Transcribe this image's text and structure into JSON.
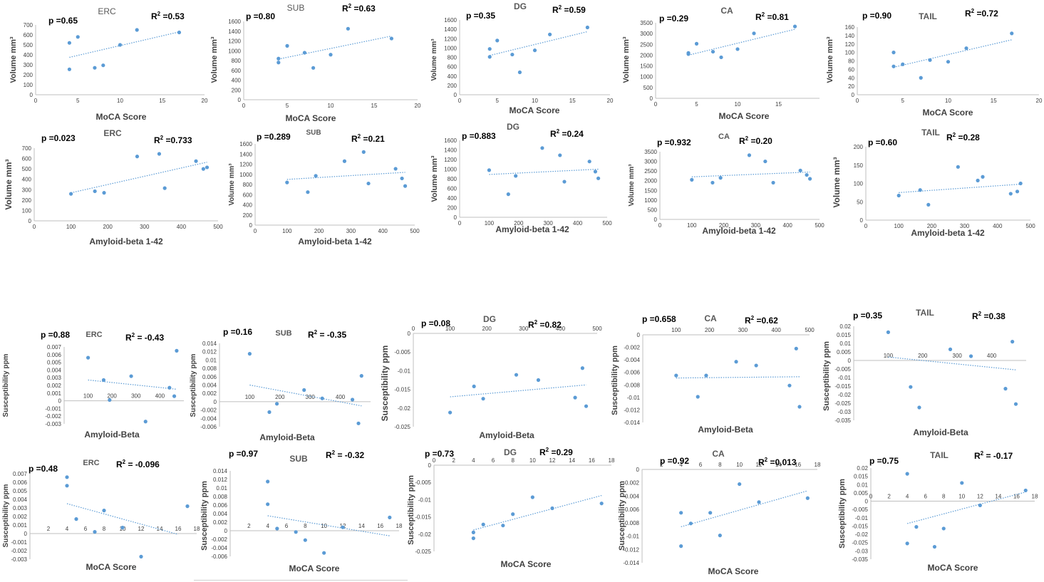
{
  "figure": {
    "style": {
      "marker_color": "#5b9bd5",
      "trend_color": "#5b9bd5",
      "axis_color": "#bfbfbf",
      "text_color": "#404040",
      "stat_color": "#000000"
    }
  },
  "chart_data": [
    {
      "id": "erc-vol-moca",
      "type": "scatter",
      "title": "ERC",
      "p": "p =0.65",
      "r2": "=0.53",
      "ylabel": "Volume mm³",
      "xlabel": "MoCA Score",
      "x": [
        4,
        4,
        5,
        7,
        8,
        10,
        12,
        17
      ],
      "y": [
        520,
        255,
        580,
        270,
        295,
        500,
        650,
        625
      ],
      "trend": [
        [
          4,
          375
        ],
        [
          17,
          630
        ]
      ],
      "xlim": [
        0,
        20
      ],
      "ylim": [
        0,
        700
      ],
      "xticks": [
        0,
        5,
        10,
        15,
        20
      ],
      "yticks": [
        0,
        100,
        200,
        300,
        400,
        500,
        600,
        700
      ]
    },
    {
      "id": "sub-vol-moca",
      "type": "scatter",
      "title": "SUB",
      "p": "p =0.80",
      "r2": "=0.63",
      "ylabel": "Volume mm³",
      "xlabel": "MoCA Score",
      "x": [
        4,
        4,
        5,
        7,
        8,
        10,
        12,
        17
      ],
      "y": [
        840,
        760,
        1100,
        960,
        650,
        920,
        1450,
        1250
      ],
      "trend": [
        [
          4,
          830
        ],
        [
          17,
          1300
        ]
      ],
      "xlim": [
        0,
        20
      ],
      "ylim": [
        0,
        1600
      ],
      "xticks": [
        0,
        5,
        10,
        15,
        20
      ],
      "yticks": [
        0,
        200,
        400,
        600,
        800,
        1000,
        1200,
        1400,
        1600
      ]
    },
    {
      "id": "dg-vol-moca",
      "type": "scatter",
      "title": "DG",
      "p": "p =0.35",
      "r2": "=0.59",
      "ylabel": "Volume mm³",
      "xlabel": "MoCA Score",
      "x": [
        4,
        4,
        5,
        7,
        8,
        10,
        12,
        17
      ],
      "y": [
        980,
        810,
        1160,
        860,
        480,
        950,
        1290,
        1440
      ],
      "trend": [
        [
          4,
          840
        ],
        [
          17,
          1350
        ]
      ],
      "xlim": [
        0,
        20
      ],
      "ylim": [
        0,
        1600
      ],
      "xticks": [
        0,
        5,
        10,
        15,
        20
      ],
      "yticks": [
        0,
        200,
        400,
        600,
        800,
        1000,
        1200,
        1400,
        1600
      ]
    },
    {
      "id": "ca-vol-moca",
      "type": "scatter",
      "title": "CA",
      "p": "p =0.29",
      "r2": "=0.81",
      "ylabel": "Volume mm³",
      "xlabel": "MoCA Score",
      "x": [
        4,
        4,
        5,
        7,
        8,
        10,
        12,
        17
      ],
      "y": [
        2100,
        2050,
        2530,
        2160,
        1900,
        2280,
        3010,
        3330
      ],
      "trend": [
        [
          4,
          2000
        ],
        [
          17,
          3200
        ]
      ],
      "xlim": [
        0,
        20
      ],
      "ylim": [
        0,
        3500
      ],
      "xticks": [
        0,
        5,
        10,
        15
      ],
      "yticks": [
        0,
        500,
        1000,
        1500,
        2000,
        2500,
        3000,
        3500
      ]
    },
    {
      "id": "tail-vol-moca",
      "type": "scatter",
      "title": "TAIL",
      "p": "p =0.90",
      "r2": "=0.72",
      "ylabel": "Volume mm³",
      "xlabel": "MoCA Score",
      "x": [
        4,
        4,
        5,
        7,
        8,
        10,
        12,
        17
      ],
      "y": [
        100,
        67,
        72,
        40,
        82,
        78,
        110,
        145
      ],
      "trend": [
        [
          4,
          65
        ],
        [
          17,
          130
        ]
      ],
      "xlim": [
        0,
        20
      ],
      "ylim": [
        0,
        160
      ],
      "xticks": [
        0,
        5,
        10,
        15,
        20
      ],
      "yticks": [
        0,
        20,
        40,
        60,
        80,
        100,
        120,
        140,
        160
      ]
    },
    {
      "id": "erc-vol-ab",
      "type": "scatter",
      "title": "ERC",
      "p": "p =0.023",
      "r2": "=0.733",
      "ylabel": "Volume mm³",
      "xlabel": "Amyloid-beta 1-42",
      "x": [
        100,
        165,
        190,
        280,
        340,
        355,
        440,
        460,
        470
      ],
      "y": [
        260,
        285,
        270,
        620,
        645,
        315,
        575,
        500,
        515
      ],
      "trend": [
        [
          100,
          270
        ],
        [
          470,
          565
        ]
      ],
      "xlim": [
        0,
        500
      ],
      "ylim": [
        0,
        700
      ],
      "xticks": [
        0,
        100,
        200,
        300,
        400,
        500
      ],
      "yticks": [
        0,
        100,
        200,
        300,
        400,
        500,
        600,
        700
      ]
    },
    {
      "id": "sub-vol-ab",
      "type": "scatter",
      "title": "SUB",
      "p": "p =0.289",
      "r2": "=0.21",
      "ylabel": "Volume mm³",
      "xlabel": "Amyloid-beta 1-42",
      "x": [
        100,
        165,
        190,
        280,
        340,
        355,
        440,
        460,
        470
      ],
      "y": [
        840,
        650,
        970,
        1260,
        1440,
        820,
        1110,
        920,
        770
      ],
      "trend": [
        [
          100,
          900
        ],
        [
          470,
          1040
        ]
      ],
      "xlim": [
        0,
        500
      ],
      "ylim": [
        0,
        1600
      ],
      "xticks": [
        0,
        100,
        200,
        300,
        400,
        500
      ],
      "yticks": [
        0,
        200,
        400,
        600,
        800,
        1000,
        1200,
        1400,
        1600
      ]
    },
    {
      "id": "dg-vol-ab",
      "type": "scatter",
      "title": "DG",
      "p": "p =0.883",
      "r2": "=0.24",
      "ylabel": "Volume mm³",
      "xlabel": "Amyloid-beta 1-42",
      "x": [
        100,
        165,
        190,
        280,
        340,
        355,
        440,
        460,
        470
      ],
      "y": [
        980,
        480,
        860,
        1440,
        1290,
        740,
        1160,
        950,
        810
      ],
      "trend": [
        [
          100,
          890
        ],
        [
          470,
          1000
        ]
      ],
      "xlim": [
        0,
        500
      ],
      "ylim": [
        0,
        1600
      ],
      "xticks": [
        0,
        100,
        200,
        300,
        400,
        500
      ],
      "yticks": [
        0,
        200,
        400,
        600,
        800,
        1000,
        1200,
        1400,
        1600
      ]
    },
    {
      "id": "ca-vol-ab",
      "type": "scatter",
      "title": "CA",
      "p": "p =0.932",
      "r2": "=0.20",
      "ylabel": "Volume mm³",
      "xlabel": "Amyloid-beta 1-42",
      "x": [
        100,
        165,
        190,
        280,
        330,
        355,
        440,
        460,
        470
      ],
      "y": [
        2050,
        1900,
        2150,
        3320,
        3000,
        1900,
        2530,
        2300,
        2100
      ],
      "trend": [
        [
          100,
          2200
        ],
        [
          470,
          2450
        ]
      ],
      "xlim": [
        0,
        500
      ],
      "ylim": [
        0,
        3500
      ],
      "xticks": [
        0,
        100,
        200,
        300,
        400,
        500
      ],
      "yticks": [
        0,
        500,
        1000,
        1500,
        2000,
        2500,
        3000,
        3500
      ]
    },
    {
      "id": "tail-vol-ab",
      "type": "scatter",
      "title": "TAIL",
      "p": "p =0.60",
      "r2": "=0.28",
      "ylabel": "Volume mm³",
      "xlabel": "Amyloid-beta 1-42",
      "x": [
        100,
        165,
        190,
        280,
        340,
        355,
        440,
        460,
        470
      ],
      "y": [
        67,
        82,
        42,
        145,
        108,
        118,
        72,
        78,
        100
      ],
      "trend": [
        [
          100,
          75
        ],
        [
          470,
          98
        ]
      ],
      "xlim": [
        0,
        500
      ],
      "ylim": [
        0,
        200
      ],
      "xticks": [
        0,
        100,
        200,
        300,
        400,
        500
      ],
      "yticks": [
        0,
        50,
        100,
        150,
        200
      ]
    },
    {
      "id": "erc-sus-ab",
      "type": "scatter",
      "title": "ERC",
      "p": "p =0.88",
      "r2": "= -0.43",
      "ylabel": "Susceptibility ppm",
      "xlabel": "Amyloid-Beta",
      "x": [
        100,
        165,
        190,
        280,
        340,
        440,
        460,
        470
      ],
      "y": [
        0.0056,
        0.0027,
        0.0001,
        0.0032,
        -0.0027,
        0.0017,
        0.0006,
        0.0065
      ],
      "trend": [
        [
          100,
          0.0027
        ],
        [
          470,
          0.0015
        ]
      ],
      "xlim": [
        0,
        500
      ],
      "ylim": [
        -0.003,
        0.007
      ],
      "xticks": [
        100,
        200,
        300,
        400
      ],
      "yticks": [
        -0.003,
        -0.002,
        -0.001,
        0,
        0.001,
        0.002,
        0.003,
        0.004,
        0.005,
        0.006,
        0.007
      ]
    },
    {
      "id": "sub-sus-ab",
      "type": "scatter",
      "title": "SUB",
      "p": "p =0.16",
      "r2": "= -0.35",
      "ylabel": "Susceptibility ppm",
      "xlabel": "Amyloid-Beta",
      "x": [
        100,
        165,
        190,
        280,
        340,
        440,
        460,
        470
      ],
      "y": [
        0.0115,
        -0.0025,
        -0.0005,
        0.0028,
        0.0008,
        0.0005,
        -0.0052,
        0.0062
      ],
      "trend": [
        [
          100,
          0.004
        ],
        [
          470,
          -0.001
        ]
      ],
      "xlim": [
        0,
        500
      ],
      "ylim": [
        -0.006,
        0.014
      ],
      "xticks": [
        100,
        200,
        300,
        400
      ],
      "yticks": [
        -0.006,
        -0.004,
        -0.002,
        0,
        0.002,
        0.004,
        0.006,
        0.008,
        0.01,
        0.012,
        0.014
      ]
    },
    {
      "id": "dg-sus-ab",
      "type": "scatter",
      "title": "DG",
      "p": "p =0.08",
      "r2": "=0.82",
      "ylabel": "Susceptibility ppm",
      "xlabel": "Amyloid-Beta",
      "x": [
        100,
        165,
        190,
        280,
        340,
        440,
        460,
        470
      ],
      "y": [
        -0.0212,
        -0.0142,
        -0.0175,
        -0.0111,
        -0.0125,
        -0.0172,
        -0.0093,
        -0.0195
      ],
      "trend": [
        [
          100,
          -0.017
        ],
        [
          470,
          -0.0138
        ]
      ],
      "xlim": [
        0,
        500
      ],
      "ylim": [
        -0.025,
        0
      ],
      "xticks": [
        0,
        100,
        200,
        300,
        400,
        500
      ],
      "yticks": [
        -0.025,
        -0.02,
        -0.015,
        -0.01,
        -0.005,
        0
      ]
    },
    {
      "id": "ca-sus-ab",
      "type": "scatter",
      "title": "CA",
      "p": "p =0.658",
      "r2": "=0.62",
      "ylabel": "Susceptibility ppm",
      "xlabel": "Amyloid-Beta",
      "x": [
        100,
        165,
        190,
        280,
        340,
        440,
        460,
        470
      ],
      "y": [
        -0.0065,
        -0.0099,
        -0.0065,
        -0.0043,
        -0.0049,
        -0.0081,
        -0.0022,
        -0.0115
      ],
      "trend": [
        [
          100,
          -0.0069
        ],
        [
          470,
          -0.0067
        ]
      ],
      "xlim": [
        0,
        500
      ],
      "ylim": [
        -0.014,
        0
      ],
      "xticks": [
        100,
        200,
        300,
        400,
        500
      ],
      "yticks": [
        -0.014,
        -0.012,
        -0.01,
        -0.008,
        -0.006,
        -0.004,
        -0.002,
        0
      ]
    },
    {
      "id": "tail-sus-ab",
      "type": "scatter",
      "title": "TAIL",
      "p": "p =0.35",
      "r2": "=0.38",
      "ylabel": "Susceptibility ppm",
      "xlabel": "Amyloid-Beta",
      "x": [
        100,
        165,
        190,
        280,
        340,
        440,
        460,
        470
      ],
      "y": [
        0.0165,
        -0.0155,
        -0.0275,
        0.0065,
        0.0025,
        -0.0165,
        0.011,
        -0.0255
      ],
      "trend": [
        [
          100,
          0.002
        ],
        [
          470,
          -0.0055
        ]
      ],
      "xlim": [
        0,
        500
      ],
      "ylim": [
        -0.035,
        0.02
      ],
      "xticks": [
        100,
        200,
        300,
        400
      ],
      "yticks": [
        -0.035,
        -0.03,
        -0.025,
        -0.02,
        -0.015,
        -0.01,
        -0.005,
        0,
        0.005,
        0.01,
        0.015,
        0.02
      ]
    },
    {
      "id": "erc-sus-moca",
      "type": "scatter",
      "title": "ERC",
      "p": "p =0.48",
      "r2": "= -0.096",
      "ylabel": "Susceptibility ppm",
      "xlabel": "MoCA Score",
      "x": [
        4,
        4,
        5,
        7,
        8,
        10,
        12,
        17
      ],
      "y": [
        0.0066,
        0.0056,
        0.0017,
        0.0002,
        0.0027,
        0.0007,
        -0.0027,
        0.0032
      ],
      "trend": [
        [
          4,
          0.0035
        ],
        [
          16,
          -0.0001
        ]
      ],
      "xlim": [
        0,
        18
      ],
      "ylim": [
        -0.003,
        0.007
      ],
      "xticks": [
        2,
        4,
        6,
        8,
        10,
        12,
        14,
        16,
        18
      ],
      "yticks": [
        -0.003,
        -0.002,
        -0.001,
        0,
        0.001,
        0.002,
        0.003,
        0.004,
        0.005,
        0.006,
        0.007
      ]
    },
    {
      "id": "sub-sus-moca",
      "type": "scatter",
      "title": "SUB",
      "p": "p =0.97",
      "r2": "= -0.32",
      "ylabel": "Susceptibility ppm",
      "xlabel": "MoCA Score",
      "x": [
        4,
        4,
        5,
        7,
        8,
        10,
        12,
        17
      ],
      "y": [
        0.0115,
        0.0062,
        0.0005,
        -0.0003,
        -0.0022,
        -0.0052,
        0.0008,
        0.0031
      ],
      "trend": [
        [
          4,
          0.0035
        ],
        [
          17,
          -0.0012
        ]
      ],
      "xlim": [
        0,
        18
      ],
      "ylim": [
        -0.006,
        0.014
      ],
      "xticks": [
        2,
        4,
        6,
        8,
        10,
        12,
        14,
        16,
        18
      ],
      "yticks": [
        -0.006,
        -0.004,
        -0.002,
        0,
        0.002,
        0.004,
        0.006,
        0.008,
        0.01,
        0.012,
        0.014
      ]
    },
    {
      "id": "dg-sus-moca",
      "type": "scatter",
      "title": "DG",
      "p": "p =0.73",
      "r2": "=0.29",
      "ylabel": "Susceptibility ppm",
      "xlabel": "MoCA Score",
      "x": [
        4,
        4,
        5,
        7,
        8,
        10,
        12,
        17
      ],
      "y": [
        -0.0195,
        -0.0212,
        -0.0172,
        -0.0175,
        -0.0142,
        -0.0093,
        -0.0125,
        -0.0111
      ],
      "trend": [
        [
          4,
          -0.0188
        ],
        [
          17,
          -0.0088
        ]
      ],
      "xlim": [
        0,
        18
      ],
      "ylim": [
        -0.025,
        0
      ],
      "xticks": [
        0,
        2,
        4,
        6,
        8,
        10,
        12,
        14,
        16,
        18
      ],
      "yticks": [
        -0.025,
        -0.02,
        -0.015,
        -0.01,
        -0.005,
        0
      ]
    },
    {
      "id": "ca-sus-moca",
      "type": "scatter",
      "title": "CA",
      "p": "p =0.92",
      "r2": "=0.013",
      "ylabel": "Susceptibility ppm",
      "xlabel": "MoCA Score",
      "x": [
        4,
        4,
        5,
        7,
        8,
        10,
        12,
        17
      ],
      "y": [
        -0.0065,
        -0.0115,
        -0.0081,
        -0.0065,
        -0.0099,
        -0.0022,
        -0.0049,
        -0.0043
      ],
      "trend": [
        [
          4,
          -0.0086
        ],
        [
          17,
          -0.0032
        ]
      ],
      "xlim": [
        0,
        18
      ],
      "ylim": [
        -0.014,
        0
      ],
      "xticks": [
        2,
        4,
        6,
        8,
        10,
        12,
        14,
        16,
        18
      ],
      "yticks": [
        -0.014,
        -0.012,
        -0.01,
        -0.008,
        -0.006,
        -0.004,
        -0.002,
        0
      ]
    },
    {
      "id": "tail-sus-moca",
      "type": "scatter",
      "title": "TAIL",
      "p": "p =0.75",
      "r2": "= -0.17",
      "ylabel": "Susceptibility ppm",
      "xlabel": "MoCA Score",
      "x": [
        4,
        4,
        5,
        7,
        8,
        10,
        12,
        17
      ],
      "y": [
        0.0165,
        -0.0255,
        -0.0155,
        -0.0275,
        -0.0165,
        0.011,
        -0.0025,
        0.0065
      ],
      "trend": [
        [
          4,
          -0.0135
        ],
        [
          17,
          0.0055
        ]
      ],
      "xlim": [
        0,
        18
      ],
      "ylim": [
        -0.035,
        0.02
      ],
      "xticks": [
        0,
        2,
        4,
        6,
        8,
        10,
        12,
        14,
        16,
        18
      ],
      "yticks": [
        -0.035,
        -0.03,
        -0.025,
        -0.02,
        -0.015,
        -0.01,
        -0.005,
        0,
        0.005,
        0.01,
        0.015,
        0.02
      ]
    }
  ]
}
